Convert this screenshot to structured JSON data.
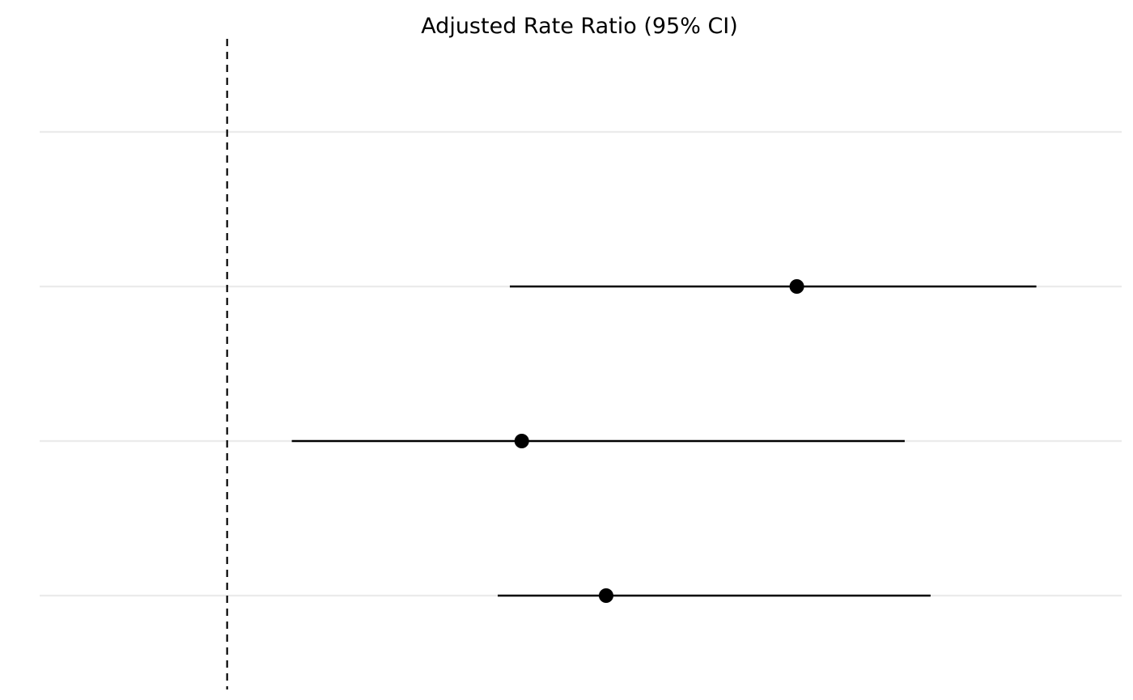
{
  "chart_data": {
    "type": "forest",
    "title": "Adjusted Rate Ratio (95% CI)",
    "xlabel": "",
    "ylabel": "",
    "x_scale": "log",
    "reference_value": 1,
    "xlim": [
      0.8,
      2.9
    ],
    "rows": [
      {
        "estimate": 1.97,
        "lower": 1.4,
        "upper": 2.62
      },
      {
        "estimate": 1.42,
        "lower": 1.08,
        "upper": 2.24
      },
      {
        "estimate": 1.57,
        "lower": 1.38,
        "upper": 2.31
      }
    ],
    "grid": true,
    "legend": "none"
  },
  "colors": {
    "point": "#000000",
    "ci_line": "#000000",
    "reference_line": "#000000",
    "grid": "#ebebeb",
    "background": "#ffffff"
  }
}
